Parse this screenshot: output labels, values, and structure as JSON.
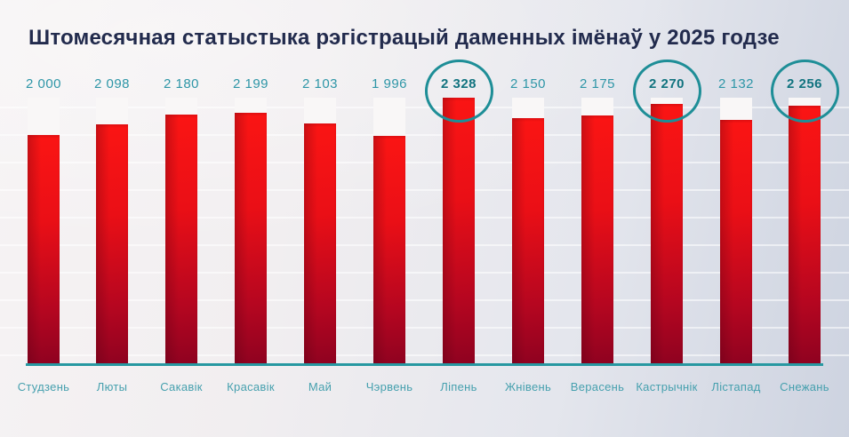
{
  "title": "Штомесячная статыстыка рэгістрацый даменных імёнаў у 2025 годзе",
  "chart_data": {
    "type": "bar",
    "title": "Штомесячная статыстыка рэгістрацый даменных імёнаў у 2025 годзе",
    "categories": [
      "Студзень",
      "Люты",
      "Сакавік",
      "Красавік",
      "Май",
      "Чэрвень",
      "Ліпень",
      "Жнівень",
      "Верасень",
      "Кастрычнік",
      "Лістапад",
      "Снежань"
    ],
    "values": [
      2000,
      2098,
      2180,
      2199,
      2103,
      1996,
      2328,
      2150,
      2175,
      2270,
      2132,
      2256
    ],
    "value_labels": [
      "2 000",
      "2 098",
      "2 180",
      "2 199",
      "2 103",
      "1 996",
      "2 328",
      "2 150",
      "2 175",
      "2 270",
      "2 132",
      "2 256"
    ],
    "highlighted_indices": [
      6,
      9,
      11
    ],
    "xlabel": "",
    "ylabel": "",
    "ylim": [
      0,
      2328
    ],
    "grid": "faint-horizontal",
    "legend_position": "none"
  },
  "colors": {
    "title_text": "#222b4d",
    "bar_gradient_top": "#fb1514",
    "bar_gradient_bottom": "#8e0220",
    "bar_track": "#f9f7f7",
    "baseline": "#2798a1",
    "value_label": "#2e96a7",
    "value_label_highlighted": "#11737f",
    "month_label": "#46a0ae",
    "highlight_circle": "#1e8e97",
    "background_left": "#f6f3f4",
    "background_right": "#cdd3e0"
  }
}
